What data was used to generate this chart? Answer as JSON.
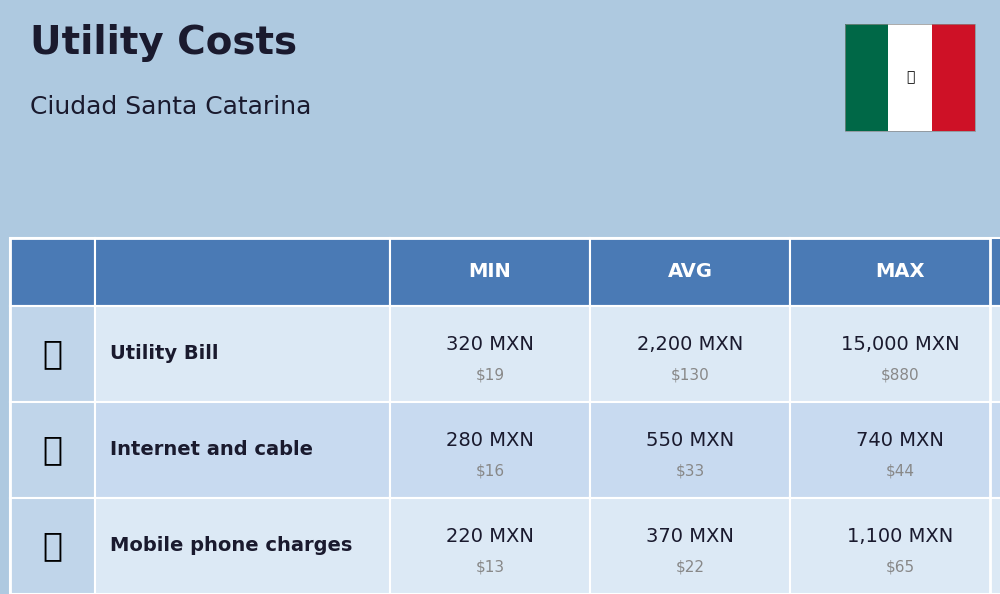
{
  "title": "Utility Costs",
  "subtitle": "Ciudad Santa Catarina",
  "background_color": "#aec9e0",
  "header_color": "#4a7ab5",
  "header_text_color": "#ffffff",
  "row_colors": [
    "#dce9f5",
    "#c8daf0"
  ],
  "icon_col_color": "#c0d5ea",
  "border_color": "#ffffff",
  "rows": [
    {
      "label": "Utility Bill",
      "icon": "utility",
      "min_mxn": "320 MXN",
      "min_usd": "$19",
      "avg_mxn": "2,200 MXN",
      "avg_usd": "$130",
      "max_mxn": "15,000 MXN",
      "max_usd": "$880"
    },
    {
      "label": "Internet and cable",
      "icon": "internet",
      "min_mxn": "280 MXN",
      "min_usd": "$16",
      "avg_mxn": "550 MXN",
      "avg_usd": "$33",
      "max_mxn": "740 MXN",
      "max_usd": "$44"
    },
    {
      "label": "Mobile phone charges",
      "icon": "mobile",
      "min_mxn": "220 MXN",
      "min_usd": "$13",
      "avg_mxn": "370 MXN",
      "avg_usd": "$22",
      "max_mxn": "1,100 MXN",
      "max_usd": "$65"
    }
  ],
  "col_headers": [
    "MIN",
    "AVG",
    "MAX"
  ],
  "main_text_color": "#1a1a2e",
  "sub_text_color": "#888888",
  "title_fontsize": 28,
  "subtitle_fontsize": 18,
  "header_fontsize": 14,
  "label_fontsize": 14,
  "value_fontsize": 14,
  "sub_value_fontsize": 11,
  "flag_colors": [
    "#006847",
    "#ffffff",
    "#ce1126"
  ]
}
